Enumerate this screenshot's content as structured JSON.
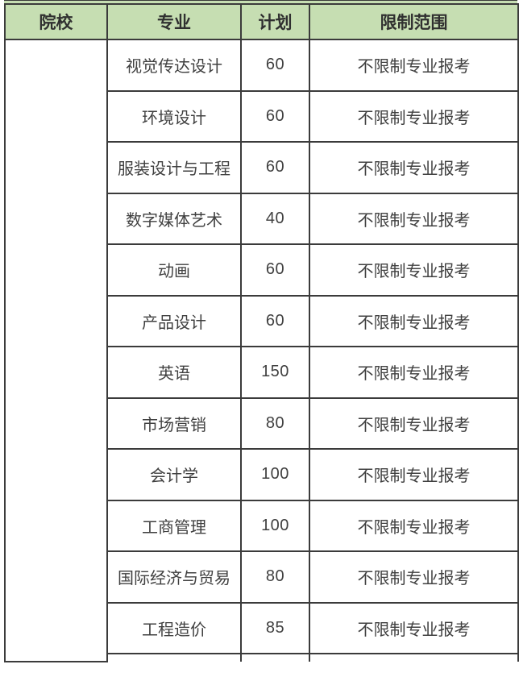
{
  "table": {
    "columns": [
      {
        "label": "院校"
      },
      {
        "label": "专业"
      },
      {
        "label": "计划"
      },
      {
        "label": "限制范围"
      }
    ],
    "school_cell_text": "",
    "rows": [
      {
        "major": "视觉传达设计",
        "plan": "60",
        "scope": "不限制专业报考"
      },
      {
        "major": "环境设计",
        "plan": "60",
        "scope": "不限制专业报考"
      },
      {
        "major": "服装设计与工程",
        "plan": "60",
        "scope": "不限制专业报考"
      },
      {
        "major": "数字媒体艺术",
        "plan": "40",
        "scope": "不限制专业报考"
      },
      {
        "major": "动画",
        "plan": "60",
        "scope": "不限制专业报考"
      },
      {
        "major": "产品设计",
        "plan": "60",
        "scope": "不限制专业报考"
      },
      {
        "major": "英语",
        "plan": "150",
        "scope": "不限制专业报考"
      },
      {
        "major": "市场营销",
        "plan": "80",
        "scope": "不限制专业报考"
      },
      {
        "major": "会计学",
        "plan": "100",
        "scope": "不限制专业报考"
      },
      {
        "major": "工商管理",
        "plan": "100",
        "scope": "不限制专业报考"
      },
      {
        "major": "国际经济与贸易",
        "plan": "80",
        "scope": "不限制专业报考"
      },
      {
        "major": "工程造价",
        "plan": "85",
        "scope": "不限制专业报考"
      }
    ],
    "colors": {
      "header_bg": "#c6deb2",
      "border": "#3b3b3b",
      "text": "#404040"
    }
  }
}
